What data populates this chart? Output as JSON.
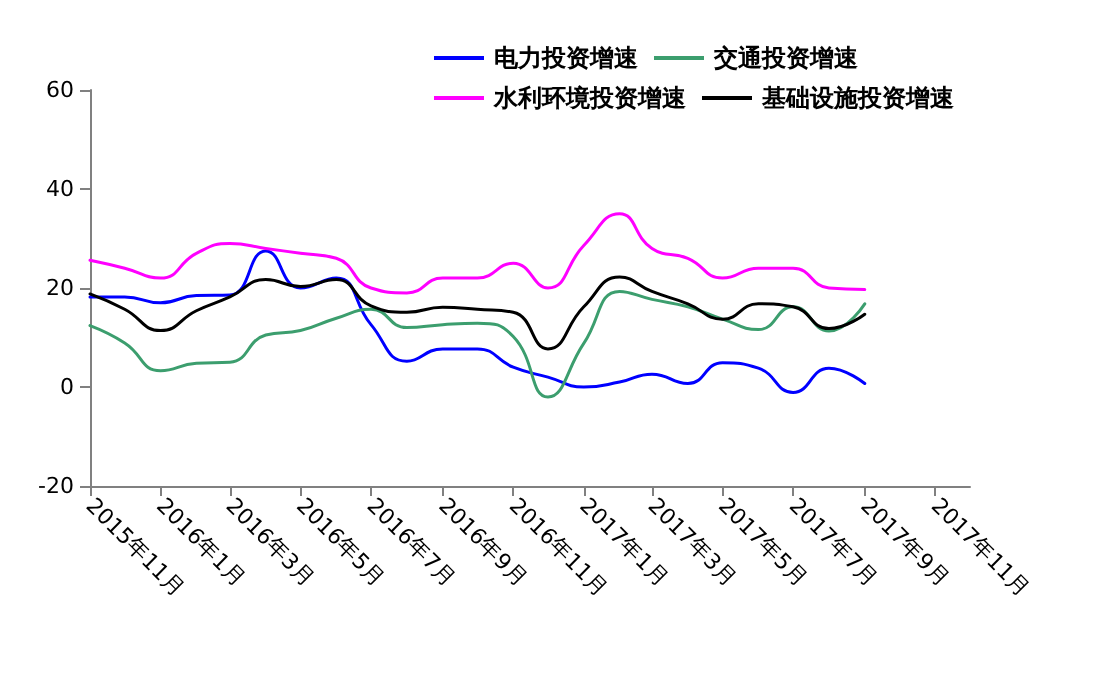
{
  "chart_data": {
    "type": "line",
    "x": [
      "2015-11",
      "2015-12",
      "2016-01",
      "2016-02",
      "2016-03",
      "2016-04",
      "2016-05",
      "2016-06",
      "2016-07",
      "2016-08",
      "2016-09",
      "2016-10",
      "2016-11",
      "2016-12",
      "2017-01",
      "2017-02",
      "2017-03",
      "2017-04",
      "2017-05",
      "2017-06",
      "2017-07",
      "2017-08",
      "2017-09"
    ],
    "series": [
      {
        "name": "电力投资增速",
        "color": "#0000ff",
        "values": [
          18.2,
          18.2,
          17,
          18.5,
          18.6,
          27.5,
          20,
          22,
          12.6,
          5.2,
          7.7,
          7.7,
          4,
          2,
          0,
          1,
          2.6,
          0.7,
          4.9,
          3.8,
          -1.1,
          3.8,
          0.7
        ]
      },
      {
        "name": "交通投资增速",
        "color": "#3c9e6e",
        "values": [
          12.4,
          8.9,
          3.3,
          4.8,
          5,
          10.5,
          11.4,
          13.9,
          15.7,
          12,
          12.6,
          12.9,
          10.2,
          -2,
          8.8,
          19.3,
          17.7,
          16.2,
          13.7,
          11.6,
          16.2,
          11.3,
          16.8
        ]
      },
      {
        "name": "水利环境投资增速",
        "color": "#ff00ff",
        "values": [
          25.6,
          24,
          22,
          27,
          29,
          28,
          27,
          26,
          20,
          19,
          22,
          22,
          25,
          20,
          28.6,
          35,
          28,
          26,
          22,
          24,
          24,
          20,
          19.7
        ]
      },
      {
        "name": "基础设施投资增速",
        "color": "#000000",
        "values": [
          18.8,
          15.7,
          11.4,
          15.4,
          18.2,
          21.7,
          20.3,
          21.7,
          16.4,
          15.1,
          16.1,
          15.7,
          15.1,
          7.7,
          16.2,
          22.2,
          19.3,
          16.8,
          13.7,
          16.8,
          16.2,
          11.8,
          14.7
        ]
      }
    ],
    "xlim": [
      "2015-11",
      "2017-12"
    ],
    "xticks": [
      {
        "value": "2015-11",
        "label": "2015年11月"
      },
      {
        "value": "2016-01",
        "label": "2016年1月"
      },
      {
        "value": "2016-03",
        "label": "2016年3月"
      },
      {
        "value": "2016-05",
        "label": "2016年5月"
      },
      {
        "value": "2016-07",
        "label": "2016年7月"
      },
      {
        "value": "2016-09",
        "label": "2016年9月"
      },
      {
        "value": "2016-11",
        "label": "2016年11月"
      },
      {
        "value": "2017-01",
        "label": "2017年1月"
      },
      {
        "value": "2017-03",
        "label": "2017年3月"
      },
      {
        "value": "2017-05",
        "label": "2017年5月"
      },
      {
        "value": "2017-07",
        "label": "2017年7月"
      },
      {
        "value": "2017-09",
        "label": "2017年9月"
      },
      {
        "value": "2017-11",
        "label": "2017年11月"
      }
    ],
    "ylim": [
      -20,
      60
    ],
    "yticks": [
      -20,
      0,
      20,
      40,
      60
    ],
    "grid": false,
    "legend": "top right",
    "marker": "none",
    "line_style": "solid"
  }
}
